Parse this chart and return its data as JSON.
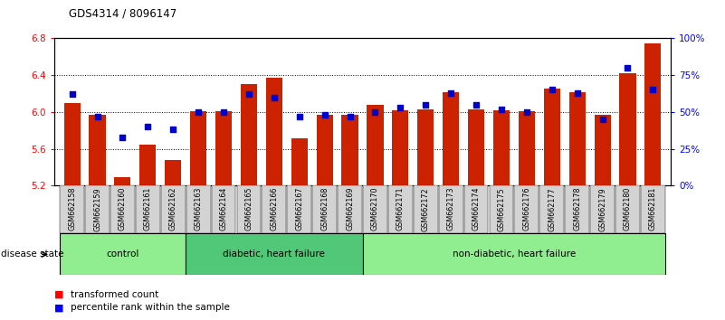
{
  "title": "GDS4314 / 8096147",
  "samples": [
    "GSM662158",
    "GSM662159",
    "GSM662160",
    "GSM662161",
    "GSM662162",
    "GSM662163",
    "GSM662164",
    "GSM662165",
    "GSM662166",
    "GSM662167",
    "GSM662168",
    "GSM662169",
    "GSM662170",
    "GSM662171",
    "GSM662172",
    "GSM662173",
    "GSM662174",
    "GSM662175",
    "GSM662176",
    "GSM662177",
    "GSM662178",
    "GSM662179",
    "GSM662180",
    "GSM662181"
  ],
  "red_values": [
    6.1,
    5.97,
    5.29,
    5.65,
    5.48,
    6.01,
    6.01,
    6.3,
    6.37,
    5.71,
    5.97,
    5.97,
    6.08,
    6.02,
    6.03,
    6.22,
    6.03,
    6.02,
    6.01,
    6.25,
    6.22,
    5.97,
    6.42,
    6.75
  ],
  "blue_values": [
    62,
    47,
    33,
    40,
    38,
    50,
    50,
    62,
    60,
    47,
    48,
    47,
    50,
    53,
    55,
    63,
    55,
    52,
    50,
    65,
    63,
    45,
    80,
    65
  ],
  "ylim_left": [
    5.2,
    6.8
  ],
  "ylim_right": [
    0,
    100
  ],
  "yticks_left": [
    5.2,
    5.6,
    6.0,
    6.4,
    6.8
  ],
  "yticks_right": [
    0,
    25,
    50,
    75,
    100
  ],
  "groups": [
    {
      "label": "control",
      "start": 0,
      "end": 4,
      "color": "#90ee90"
    },
    {
      "label": "diabetic, heart failure",
      "start": 5,
      "end": 11,
      "color": "#50c878"
    },
    {
      "label": "non-diabetic, heart failure",
      "start": 12,
      "end": 23,
      "color": "#90ee90"
    }
  ],
  "bar_color": "#cc2200",
  "dot_color": "#0000cc",
  "bar_width": 0.65,
  "dot_size": 25,
  "legend_labels": [
    "transformed count",
    "percentile rank within the sample"
  ],
  "plot_bg": "#ffffff",
  "tick_bg": "#d3d3d3"
}
